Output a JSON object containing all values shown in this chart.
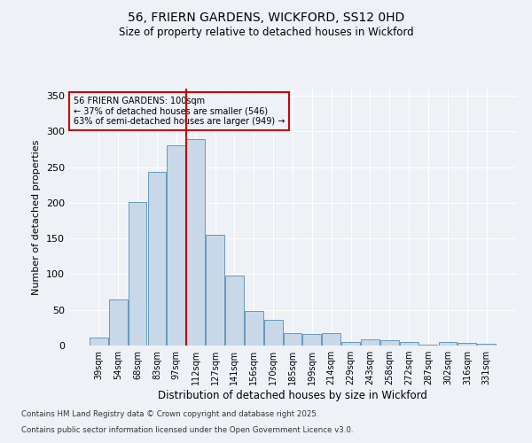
{
  "title1": "56, FRIERN GARDENS, WICKFORD, SS12 0HD",
  "title2": "Size of property relative to detached houses in Wickford",
  "xlabel": "Distribution of detached houses by size in Wickford",
  "ylabel": "Number of detached properties",
  "categories": [
    "39sqm",
    "54sqm",
    "68sqm",
    "83sqm",
    "97sqm",
    "112sqm",
    "127sqm",
    "141sqm",
    "156sqm",
    "170sqm",
    "185sqm",
    "199sqm",
    "214sqm",
    "229sqm",
    "243sqm",
    "258sqm",
    "272sqm",
    "287sqm",
    "302sqm",
    "316sqm",
    "331sqm"
  ],
  "values": [
    11,
    65,
    201,
    243,
    281,
    289,
    155,
    98,
    49,
    36,
    17,
    16,
    18,
    5,
    9,
    8,
    5,
    1,
    5,
    4,
    3
  ],
  "bar_color": "#c8d8e8",
  "bar_edge_color": "#6699bb",
  "ref_line_x": 4.5,
  "ref_line_label": "56 FRIERN GARDENS: 100sqm",
  "ref_line_note1": "← 37% of detached houses are smaller (546)",
  "ref_line_note2": "63% of semi-detached houses are larger (949) →",
  "annotation_box_color": "#cc0000",
  "vline_color": "#cc0000",
  "ylim": [
    0,
    360
  ],
  "yticks": [
    0,
    50,
    100,
    150,
    200,
    250,
    300,
    350
  ],
  "background_color": "#eef2f7",
  "grid_color": "#ffffff",
  "footer1": "Contains HM Land Registry data © Crown copyright and database right 2025.",
  "footer2": "Contains public sector information licensed under the Open Government Licence v3.0."
}
